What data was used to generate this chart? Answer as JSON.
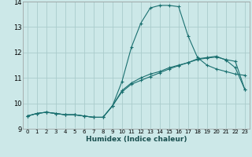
{
  "xlabel": "Humidex (Indice chaleur)",
  "bg_color": "#cce8e8",
  "grid_color": "#aacccc",
  "line_color": "#1a7070",
  "xlim": [
    -0.5,
    23.5
  ],
  "ylim": [
    9,
    14
  ],
  "xticks": [
    0,
    1,
    2,
    3,
    4,
    5,
    6,
    7,
    8,
    9,
    10,
    11,
    12,
    13,
    14,
    15,
    16,
    17,
    18,
    19,
    20,
    21,
    22,
    23
  ],
  "yticks": [
    9,
    10,
    11,
    12,
    13,
    14
  ],
  "curve1_x": [
    0,
    1,
    2,
    3,
    4,
    5,
    6,
    7,
    8,
    9,
    10,
    11,
    12,
    13,
    14,
    15,
    16,
    17,
    18,
    19,
    20,
    21,
    22,
    23
  ],
  "curve1_y": [
    9.5,
    9.6,
    9.65,
    9.6,
    9.55,
    9.55,
    9.5,
    9.45,
    9.45,
    9.9,
    10.5,
    10.8,
    11.0,
    11.15,
    11.25,
    11.4,
    11.5,
    11.6,
    11.75,
    11.8,
    11.85,
    11.7,
    11.4,
    10.55
  ],
  "curve2_x": [
    0,
    1,
    2,
    3,
    4,
    5,
    6,
    7,
    8,
    9,
    10,
    11,
    12,
    13,
    14,
    15,
    16,
    17,
    18,
    19,
    20,
    21,
    22,
    23
  ],
  "curve2_y": [
    9.5,
    9.6,
    9.65,
    9.6,
    9.55,
    9.55,
    9.5,
    9.45,
    9.45,
    9.9,
    10.85,
    12.2,
    13.15,
    13.75,
    13.85,
    13.85,
    13.8,
    12.65,
    11.8,
    11.5,
    11.35,
    11.25,
    11.15,
    11.1
  ],
  "curve3_x": [
    0,
    1,
    2,
    3,
    4,
    5,
    6,
    7,
    8,
    9,
    10,
    11,
    12,
    13,
    14,
    15,
    16,
    17,
    18,
    19,
    20,
    21,
    22,
    23
  ],
  "curve3_y": [
    9.5,
    9.6,
    9.65,
    9.6,
    9.55,
    9.55,
    9.5,
    9.45,
    9.45,
    9.9,
    10.45,
    10.75,
    10.9,
    11.05,
    11.2,
    11.35,
    11.48,
    11.6,
    11.72,
    11.78,
    11.82,
    11.72,
    11.65,
    10.55
  ]
}
